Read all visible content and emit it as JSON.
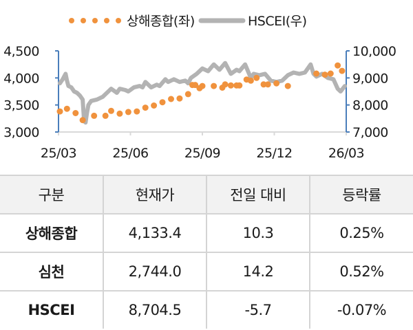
{
  "legend": {
    "series1": "상해종합(좌)",
    "series2": "HSCEI(우)"
  },
  "colors": {
    "shanghai": "#f0923d",
    "hscei": "#b3b3b3",
    "axis": "#4a7ebb",
    "grid_axis": "#d9d9d9",
    "header_bg": "#f2f2f2",
    "table_border": "#d4d4d4"
  },
  "chart_data": {
    "type": "line",
    "title": "",
    "x_tick_labels": [
      "25/03",
      "25/06",
      "25/09",
      "25/12",
      "26/03"
    ],
    "left_axis": {
      "label": "상해종합(좌)",
      "ylim": [
        3000,
        4500
      ],
      "ticks": [
        "4,500",
        "4,000",
        "3,500",
        "3,000"
      ]
    },
    "right_axis": {
      "label": "HSCEI(우)",
      "ylim": [
        7000,
        10000
      ],
      "ticks": [
        "10,000",
        "9,000",
        "8,000",
        "7,000"
      ]
    },
    "legend_position": "top",
    "grid": false,
    "series": [
      {
        "name": "상해종합(좌)",
        "axis": "left",
        "style": "dotted-markers",
        "x_frac": [
          0.0,
          0.025,
          0.055,
          0.08,
          0.12,
          0.16,
          0.18,
          0.21,
          0.24,
          0.27,
          0.3,
          0.33,
          0.36,
          0.39,
          0.42,
          0.45,
          0.465,
          0.475,
          0.49,
          0.5,
          0.54,
          0.57,
          0.58,
          0.6,
          0.62,
          0.63,
          0.655,
          0.67,
          0.69,
          0.715,
          0.73,
          0.76,
          0.8,
          0.9,
          0.93,
          0.95,
          0.975,
          0.99
        ],
        "values": [
          3380,
          3430,
          3350,
          3220,
          3300,
          3300,
          3390,
          3340,
          3370,
          3380,
          3450,
          3490,
          3550,
          3610,
          3620,
          3700,
          3870,
          3870,
          3810,
          3850,
          3850,
          3820,
          3880,
          3860,
          3860,
          3860,
          3970,
          3950,
          4000,
          3880,
          3880,
          3900,
          3850,
          4080,
          4060,
          4080,
          4230,
          4130
        ]
      },
      {
        "name": "HSCEI(우)",
        "axis": "right",
        "style": "line",
        "x_frac": [
          0.0,
          0.01,
          0.02,
          0.025,
          0.03,
          0.04,
          0.05,
          0.06,
          0.07,
          0.08,
          0.085,
          0.09,
          0.095,
          0.1,
          0.11,
          0.13,
          0.15,
          0.17,
          0.18,
          0.2,
          0.21,
          0.23,
          0.24,
          0.26,
          0.28,
          0.29,
          0.3,
          0.32,
          0.34,
          0.35,
          0.37,
          0.38,
          0.4,
          0.42,
          0.44,
          0.45,
          0.46,
          0.48,
          0.49,
          0.5,
          0.52,
          0.54,
          0.56,
          0.58,
          0.6,
          0.62,
          0.63,
          0.65,
          0.67,
          0.68,
          0.7,
          0.72,
          0.74,
          0.76,
          0.78,
          0.8,
          0.82,
          0.84,
          0.86,
          0.88,
          0.89,
          0.9,
          0.92,
          0.94,
          0.96,
          0.975,
          0.985,
          1.0
        ],
        "values": [
          8800,
          8950,
          9150,
          8900,
          8700,
          8650,
          8500,
          8450,
          8350,
          8200,
          7400,
          7350,
          7700,
          8000,
          8150,
          8200,
          8300,
          8500,
          8600,
          8450,
          8600,
          8550,
          8500,
          8650,
          8700,
          8650,
          8850,
          8650,
          8750,
          8700,
          8950,
          8850,
          8950,
          8850,
          8900,
          8800,
          9000,
          9150,
          9250,
          9350,
          9250,
          9500,
          9300,
          9550,
          9150,
          9300,
          9250,
          9500,
          9000,
          9150,
          9100,
          9150,
          8900,
          8850,
          8900,
          9100,
          9200,
          9150,
          9200,
          9500,
          9150,
          9050,
          9150,
          9000,
          8950,
          8600,
          8500,
          8700
        ]
      }
    ]
  },
  "table": {
    "headers": [
      "구분",
      "현재가",
      "전일 대비",
      "등락률"
    ],
    "rows": [
      {
        "name": "상해종합",
        "price": "4,133.4",
        "change": "10.3",
        "rate": "0.25%"
      },
      {
        "name": "심천",
        "price": "2,744.0",
        "change": "14.2",
        "rate": "0.52%"
      },
      {
        "name": "HSCEI",
        "price": "8,704.5",
        "change": "-5.7",
        "rate": "-0.07%"
      }
    ]
  }
}
